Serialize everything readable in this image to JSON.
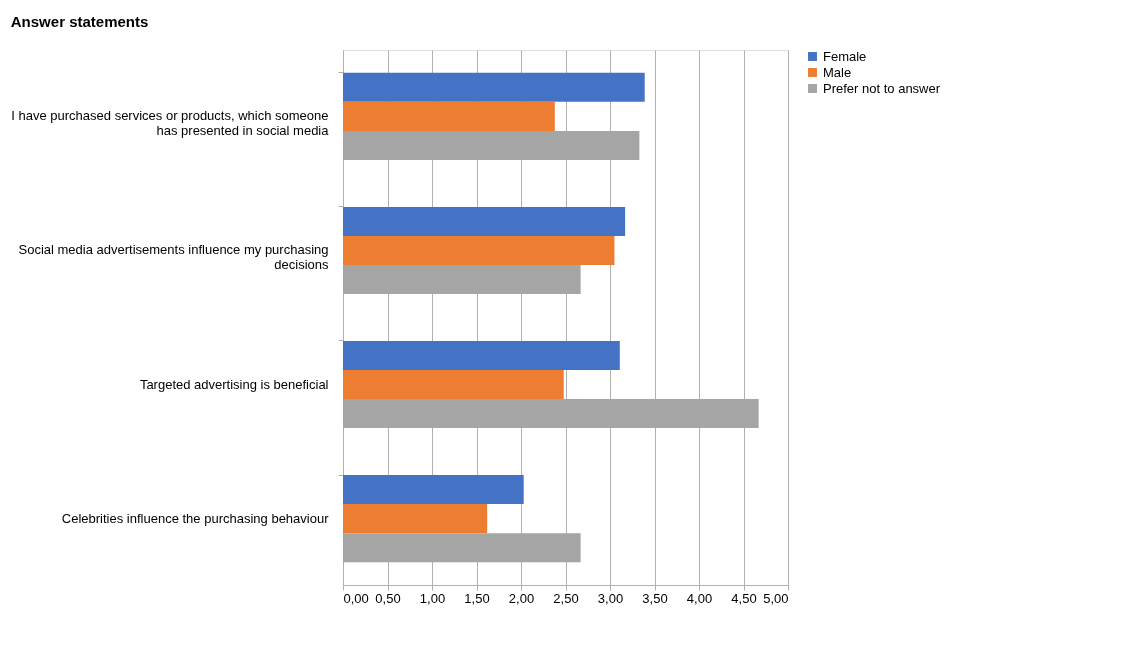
{
  "chart_data": {
    "type": "bar",
    "orientation": "horizontal",
    "title": "Answer statements",
    "categories": [
      "I have purchased services or products, which someone has presented in social media",
      "Social media advertisements influence my purchasing decisions",
      "Targeted advertising is beneficial",
      "Celebrities influence the purchasing behaviour"
    ],
    "series": [
      {
        "name": "Female",
        "color": "#4472c4",
        "values": [
          3.39,
          3.17,
          3.11,
          2.03
        ]
      },
      {
        "name": "Male",
        "color": "#ed7d31",
        "values": [
          2.38,
          3.05,
          2.48,
          1.62
        ]
      },
      {
        "name": "Prefer not to answer",
        "color": "#a5a5a5",
        "values": [
          3.33,
          2.67,
          4.67,
          2.67
        ]
      }
    ],
    "xlim": [
      0,
      5
    ],
    "xticks": [
      {
        "value": 0,
        "label": "0,00"
      },
      {
        "value": 0.5,
        "label": "0,50"
      },
      {
        "value": 1,
        "label": "1,00"
      },
      {
        "value": 1.5,
        "label": "1,50"
      },
      {
        "value": 2,
        "label": "2,00"
      },
      {
        "value": 2.5,
        "label": "2,50"
      },
      {
        "value": 3,
        "label": "3,00"
      },
      {
        "value": 3.5,
        "label": "3,50"
      },
      {
        "value": 4,
        "label": "4,00"
      },
      {
        "value": 4.5,
        "label": "4,50"
      },
      {
        "value": 5,
        "label": "5,00"
      }
    ],
    "grid": "x",
    "legend": "right"
  }
}
